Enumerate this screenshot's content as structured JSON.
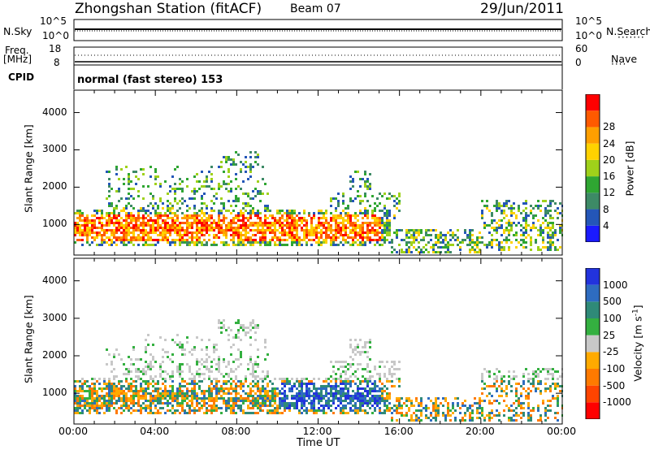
{
  "header": {
    "station": "Zhongshan Station (fitACF)",
    "beam": "Beam 07",
    "date": "29/Jun/2011"
  },
  "panels": {
    "nsky": {
      "label": "N.Sky",
      "tick_top": "10^5",
      "tick_bottom": "10^0"
    },
    "nsearch": {
      "label": "N.Search",
      "tick_top": "10^5",
      "tick_bottom": "10^0"
    },
    "freq": {
      "label_line1": "Freq.",
      "label_line2": "[MHz]",
      "tick_top": "18",
      "tick_bottom": "8"
    },
    "nave": {
      "label": "Nave",
      "tick_top": "60",
      "tick_bottom": "0"
    },
    "cpid": {
      "label": "CPID",
      "value": "normal (fast stereo) 153"
    }
  },
  "chart_data": [
    {
      "type": "heatmap",
      "name": "power",
      "ylabel": "Slant Range [km]",
      "xlabel": "",
      "yticks": [
        1000,
        2000,
        3000,
        4000
      ],
      "ylim": [
        180,
        4600
      ],
      "xlim_hours": [
        0,
        24
      ],
      "colorbar": {
        "label": "Power [dB]",
        "ticks": [
          "4",
          "8",
          "12",
          "16",
          "20",
          "24",
          "28"
        ],
        "colors": [
          "#1a1aff",
          "#2456b8",
          "#3d8a66",
          "#2fa632",
          "#9fd11a",
          "#ffd200",
          "#ff9f00",
          "#ff5a00",
          "#ff0000"
        ]
      }
    },
    {
      "type": "heatmap",
      "name": "velocity",
      "ylabel": "Slant Range [km]",
      "xlabel": "Time UT",
      "yticks": [
        1000,
        2000,
        3000,
        4000
      ],
      "ylim": [
        180,
        4600
      ],
      "xlim_hours": [
        0,
        24
      ],
      "xticks": [
        "00:00",
        "04:00",
        "08:00",
        "12:00",
        "16:00",
        "20:00",
        "00:00"
      ],
      "colorbar": {
        "label": "Velocity [m s-1]",
        "ticks": [
          "1000",
          "500",
          "100",
          "25",
          "-25",
          "-100",
          "-500",
          "-1000"
        ],
        "colors": [
          "#2233dd",
          "#2e6cc0",
          "#2f8a78",
          "#34b040",
          "#c8c8c8",
          "#ffaa00",
          "#ff7a00",
          "#ff4400",
          "#ff0000"
        ]
      }
    }
  ]
}
